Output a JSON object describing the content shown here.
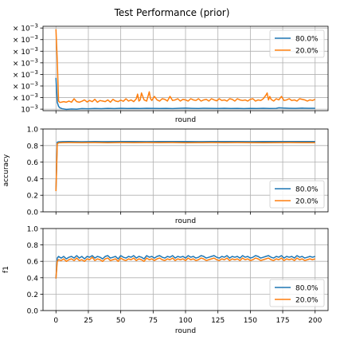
{
  "suptitle": "Test Performance (prior)",
  "colors": {
    "s80": "#1f77b4",
    "s20": "#ff7f0e"
  },
  "chart_data": [
    {
      "type": "line",
      "title": "",
      "xlabel": "round",
      "ylabel": "",
      "xlim": [
        -10,
        210
      ],
      "ylim": [
        0.00087,
        0.00815
      ],
      "grid": true,
      "legend_placement": "top-right",
      "y_ticks": [
        {
          "value": 0.001,
          "label": "10^-3"
        },
        {
          "value": 0.002,
          "label": "× 10^-3"
        },
        {
          "value": 0.003,
          "label": "× 10^-3"
        },
        {
          "value": 0.004,
          "label": "× 10^-3"
        },
        {
          "value": 0.005,
          "label": "× 10^-3"
        },
        {
          "value": 0.006,
          "label": "× 10^-3"
        },
        {
          "value": 0.007,
          "label": "× 10^-3"
        },
        {
          "value": 0.008,
          "label": "× 10^-3"
        }
      ],
      "series": [
        {
          "name": "80.0%",
          "color": "#1f77b4",
          "x": [
            0,
            1,
            2,
            3,
            5,
            8,
            12,
            16,
            20,
            25,
            30,
            35,
            40,
            45,
            50,
            55,
            60,
            65,
            70,
            75,
            80,
            85,
            90,
            95,
            100,
            105,
            110,
            115,
            120,
            125,
            130,
            135,
            140,
            145,
            150,
            155,
            160,
            165,
            170,
            172,
            175,
            180,
            185,
            190,
            195,
            200
          ],
          "y": [
            0.0037,
            0.0016,
            0.00125,
            0.00112,
            0.00103,
            0.00098,
            0.00102,
            0.001,
            0.00105,
            0.00103,
            0.00106,
            0.00104,
            0.00107,
            0.00105,
            0.00108,
            0.00106,
            0.00107,
            0.00106,
            0.00108,
            0.00107,
            0.00106,
            0.00107,
            0.00105,
            0.00108,
            0.00109,
            0.00107,
            0.00106,
            0.00108,
            0.00107,
            0.00106,
            0.00108,
            0.00106,
            0.00107,
            0.00105,
            0.00107,
            0.00106,
            0.00108,
            0.00106,
            0.00107,
            0.00112,
            0.0011,
            0.00108,
            0.00107,
            0.00109,
            0.00108,
            0.00108
          ]
        },
        {
          "name": "20.0%",
          "color": "#ff7f0e",
          "x": [
            0,
            1,
            2,
            3,
            4,
            6,
            8,
            10,
            12,
            14,
            16,
            18,
            20,
            22,
            24,
            26,
            28,
            30,
            32,
            34,
            36,
            38,
            40,
            42,
            44,
            46,
            48,
            50,
            52,
            54,
            56,
            58,
            60,
            62,
            63,
            64,
            65,
            66,
            68,
            70,
            72,
            73,
            74,
            76,
            78,
            80,
            82,
            84,
            86,
            88,
            90,
            92,
            94,
            96,
            98,
            100,
            102,
            104,
            106,
            108,
            110,
            112,
            114,
            116,
            118,
            120,
            122,
            124,
            126,
            128,
            130,
            132,
            134,
            136,
            138,
            140,
            142,
            144,
            146,
            148,
            150,
            152,
            154,
            156,
            158,
            160,
            162,
            163,
            164,
            165,
            166,
            168,
            170,
            172,
            174,
            176,
            178,
            180,
            182,
            184,
            186,
            188,
            190,
            192,
            194,
            196,
            198,
            200
          ],
          "y": [
            0.0079,
            0.0052,
            0.0017,
            0.00158,
            0.0016,
            0.00165,
            0.0016,
            0.0017,
            0.0016,
            0.0019,
            0.00165,
            0.0016,
            0.00168,
            0.0018,
            0.00162,
            0.00175,
            0.00165,
            0.00185,
            0.0016,
            0.00175,
            0.0017,
            0.00165,
            0.0018,
            0.0016,
            0.00185,
            0.0017,
            0.00165,
            0.00178,
            0.00168,
            0.0019,
            0.0017,
            0.0018,
            0.00165,
            0.0019,
            0.0023,
            0.0017,
            0.0018,
            0.0024,
            0.0018,
            0.0017,
            0.0025,
            0.0019,
            0.00175,
            0.0021,
            0.0018,
            0.0017,
            0.0019,
            0.00185,
            0.0017,
            0.0021,
            0.00175,
            0.0018,
            0.0019,
            0.0017,
            0.00185,
            0.0018,
            0.0017,
            0.0019,
            0.0018,
            0.00175,
            0.0019,
            0.0017,
            0.0018,
            0.00185,
            0.0017,
            0.0019,
            0.0018,
            0.00172,
            0.0019,
            0.00175,
            0.0018,
            0.0017,
            0.0019,
            0.00185,
            0.0017,
            0.0019,
            0.0018,
            0.00175,
            0.0018,
            0.0017,
            0.00185,
            0.0019,
            0.0017,
            0.0018,
            0.00175,
            0.0019,
            0.0022,
            0.0024,
            0.0018,
            0.0021,
            0.00185,
            0.0017,
            0.0019,
            0.0018,
            0.0021,
            0.00175,
            0.0018,
            0.0019,
            0.00175,
            0.0018,
            0.0017,
            0.0019,
            0.00185,
            0.0018,
            0.0017,
            0.0018,
            0.00175,
            0.00185
          ]
        }
      ]
    },
    {
      "type": "line",
      "title": "",
      "xlabel": "round",
      "ylabel": "accuracy",
      "xlim": [
        -10,
        210
      ],
      "ylim": [
        0.0,
        1.0
      ],
      "grid": true,
      "legend_placement": "bottom-right",
      "y_ticks": [
        {
          "value": 0.0,
          "label": "0.0"
        },
        {
          "value": 0.2,
          "label": "0.2"
        },
        {
          "value": 0.4,
          "label": "0.4"
        },
        {
          "value": 0.6,
          "label": "0.6"
        },
        {
          "value": 0.8,
          "label": "0.8"
        },
        {
          "value": 1.0,
          "label": "1.0"
        }
      ],
      "series": [
        {
          "name": "80.0%",
          "color": "#1f77b4",
          "x": [
            0,
            1,
            2,
            5,
            10,
            20,
            30,
            40,
            50,
            60,
            70,
            80,
            90,
            100,
            110,
            120,
            130,
            140,
            150,
            160,
            170,
            180,
            190,
            200
          ],
          "y": [
            0.25,
            0.84,
            0.845,
            0.847,
            0.848,
            0.846,
            0.848,
            0.847,
            0.849,
            0.848,
            0.847,
            0.848,
            0.849,
            0.848,
            0.847,
            0.848,
            0.849,
            0.848,
            0.847,
            0.848,
            0.848,
            0.849,
            0.848,
            0.848
          ]
        },
        {
          "name": "20.0%",
          "color": "#ff7f0e",
          "x": [
            0,
            1,
            2,
            5,
            10,
            20,
            30,
            40,
            50,
            60,
            70,
            80,
            90,
            100,
            110,
            120,
            130,
            140,
            150,
            160,
            170,
            180,
            190,
            200
          ],
          "y": [
            0.25,
            0.82,
            0.833,
            0.835,
            0.836,
            0.835,
            0.836,
            0.834,
            0.836,
            0.835,
            0.836,
            0.835,
            0.836,
            0.834,
            0.835,
            0.836,
            0.835,
            0.836,
            0.835,
            0.834,
            0.835,
            0.836,
            0.835,
            0.835
          ]
        }
      ]
    },
    {
      "type": "line",
      "title": "",
      "xlabel": "round",
      "ylabel": "f1",
      "xlim": [
        -10,
        210
      ],
      "ylim": [
        0.0,
        1.0
      ],
      "grid": true,
      "legend_placement": "bottom-right",
      "x_ticks": [
        0,
        25,
        50,
        75,
        100,
        125,
        150,
        175,
        200
      ],
      "y_ticks": [
        {
          "value": 0.0,
          "label": "0.0"
        },
        {
          "value": 0.2,
          "label": "0.2"
        },
        {
          "value": 0.4,
          "label": "0.4"
        },
        {
          "value": 0.6,
          "label": "0.6"
        },
        {
          "value": 0.8,
          "label": "0.8"
        },
        {
          "value": 1.0,
          "label": "1.0"
        }
      ],
      "series": [
        {
          "name": "80.0%",
          "color": "#1f77b4",
          "x": [
            0,
            1,
            2,
            4,
            6,
            8,
            10,
            12,
            14,
            16,
            18,
            20,
            22,
            24,
            26,
            28,
            30,
            32,
            34,
            36,
            38,
            40,
            42,
            44,
            46,
            48,
            50,
            52,
            54,
            56,
            58,
            60,
            62,
            64,
            66,
            68,
            70,
            72,
            74,
            76,
            78,
            80,
            82,
            84,
            86,
            88,
            90,
            92,
            94,
            96,
            98,
            100,
            102,
            104,
            106,
            108,
            110,
            112,
            114,
            116,
            118,
            120,
            122,
            124,
            126,
            128,
            130,
            132,
            134,
            136,
            138,
            140,
            142,
            144,
            146,
            148,
            150,
            152,
            154,
            156,
            158,
            160,
            162,
            164,
            166,
            168,
            170,
            172,
            174,
            176,
            178,
            180,
            182,
            184,
            186,
            188,
            190,
            192,
            194,
            196,
            198,
            200
          ],
          "y": [
            0.39,
            0.64,
            0.66,
            0.64,
            0.66,
            0.63,
            0.65,
            0.66,
            0.64,
            0.67,
            0.64,
            0.66,
            0.63,
            0.66,
            0.65,
            0.67,
            0.64,
            0.66,
            0.65,
            0.63,
            0.66,
            0.67,
            0.64,
            0.65,
            0.66,
            0.63,
            0.67,
            0.65,
            0.64,
            0.66,
            0.65,
            0.67,
            0.64,
            0.66,
            0.65,
            0.63,
            0.67,
            0.65,
            0.66,
            0.64,
            0.66,
            0.67,
            0.65,
            0.64,
            0.66,
            0.65,
            0.67,
            0.64,
            0.66,
            0.65,
            0.66,
            0.64,
            0.67,
            0.65,
            0.66,
            0.64,
            0.65,
            0.67,
            0.66,
            0.64,
            0.65,
            0.66,
            0.67,
            0.65,
            0.64,
            0.66,
            0.65,
            0.67,
            0.64,
            0.66,
            0.65,
            0.66,
            0.64,
            0.67,
            0.65,
            0.66,
            0.64,
            0.65,
            0.67,
            0.66,
            0.64,
            0.65,
            0.66,
            0.67,
            0.65,
            0.64,
            0.66,
            0.65,
            0.67,
            0.64,
            0.66,
            0.65,
            0.66,
            0.64,
            0.67,
            0.65,
            0.66,
            0.64,
            0.65,
            0.66,
            0.65,
            0.66
          ]
        },
        {
          "name": "20.0%",
          "color": "#ff7f0e",
          "x": [
            0,
            1,
            2,
            4,
            6,
            8,
            10,
            12,
            14,
            16,
            18,
            20,
            22,
            24,
            26,
            28,
            30,
            32,
            34,
            36,
            38,
            40,
            42,
            44,
            46,
            48,
            50,
            52,
            54,
            56,
            58,
            60,
            62,
            64,
            66,
            68,
            70,
            72,
            74,
            76,
            78,
            80,
            82,
            84,
            86,
            88,
            90,
            92,
            94,
            96,
            98,
            100,
            102,
            104,
            106,
            108,
            110,
            112,
            114,
            116,
            118,
            120,
            122,
            124,
            126,
            128,
            130,
            132,
            134,
            136,
            138,
            140,
            142,
            144,
            146,
            148,
            150,
            152,
            154,
            156,
            158,
            160,
            162,
            164,
            166,
            168,
            170,
            172,
            174,
            176,
            178,
            180,
            182,
            184,
            186,
            188,
            190,
            192,
            194,
            196,
            198,
            200
          ],
          "y": [
            0.39,
            0.6,
            0.62,
            0.61,
            0.63,
            0.6,
            0.62,
            0.63,
            0.61,
            0.64,
            0.61,
            0.62,
            0.6,
            0.63,
            0.62,
            0.65,
            0.61,
            0.63,
            0.62,
            0.6,
            0.63,
            0.64,
            0.61,
            0.62,
            0.63,
            0.6,
            0.64,
            0.62,
            0.61,
            0.63,
            0.62,
            0.64,
            0.61,
            0.63,
            0.62,
            0.6,
            0.64,
            0.62,
            0.63,
            0.61,
            0.63,
            0.64,
            0.62,
            0.61,
            0.63,
            0.62,
            0.64,
            0.61,
            0.63,
            0.62,
            0.63,
            0.61,
            0.64,
            0.62,
            0.63,
            0.61,
            0.62,
            0.64,
            0.63,
            0.61,
            0.62,
            0.63,
            0.64,
            0.62,
            0.61,
            0.63,
            0.62,
            0.64,
            0.61,
            0.63,
            0.62,
            0.63,
            0.61,
            0.64,
            0.62,
            0.63,
            0.61,
            0.62,
            0.64,
            0.63,
            0.61,
            0.62,
            0.63,
            0.64,
            0.62,
            0.61,
            0.63,
            0.62,
            0.64,
            0.61,
            0.63,
            0.62,
            0.63,
            0.61,
            0.64,
            0.62,
            0.63,
            0.61,
            0.62,
            0.63,
            0.62,
            0.63
          ]
        }
      ]
    }
  ]
}
